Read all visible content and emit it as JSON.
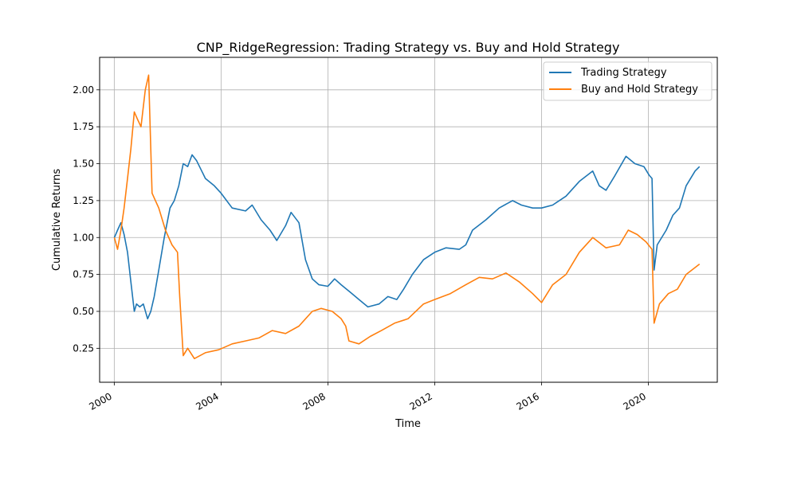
{
  "chart_data": {
    "type": "line",
    "title": "CNP_RidgeRegression: Trading Strategy vs. Buy and Hold Strategy",
    "xlabel": "Time",
    "ylabel": "Cumulative Returns",
    "xlim": [
      "1999-06-15",
      "2022-08-01"
    ],
    "ylim": [
      0.02,
      2.22
    ],
    "x_ticks": [
      {
        "date": "2000-01-01",
        "label": "2000"
      },
      {
        "date": "2004-01-01",
        "label": "2004"
      },
      {
        "date": "2008-01-01",
        "label": "2008"
      },
      {
        "date": "2012-01-01",
        "label": "2012"
      },
      {
        "date": "2016-01-01",
        "label": "2016"
      },
      {
        "date": "2020-01-01",
        "label": "2020"
      }
    ],
    "y_ticks": [
      {
        "value": 0.25,
        "label": "0.25"
      },
      {
        "value": 0.5,
        "label": "0.50"
      },
      {
        "value": 0.75,
        "label": "0.75"
      },
      {
        "value": 1.0,
        "label": "1.00"
      },
      {
        "value": 1.25,
        "label": "1.25"
      },
      {
        "value": 1.5,
        "label": "1.50"
      },
      {
        "value": 1.75,
        "label": "1.75"
      },
      {
        "value": 2.0,
        "label": "2.00"
      }
    ],
    "grid": true,
    "legend_position": "top-right",
    "series": [
      {
        "name": "Trading Strategy",
        "color": "#1f77b4",
        "points": [
          [
            "2000-01-03",
            1.0
          ],
          [
            "2000-02-15",
            1.05
          ],
          [
            "2000-04-01",
            1.1
          ],
          [
            "2000-05-15",
            1.02
          ],
          [
            "2000-07-01",
            0.9
          ],
          [
            "2000-08-15",
            0.7
          ],
          [
            "2000-10-01",
            0.5
          ],
          [
            "2000-11-01",
            0.55
          ],
          [
            "2000-12-15",
            0.53
          ],
          [
            "2001-02-01",
            0.55
          ],
          [
            "2001-04-01",
            0.45
          ],
          [
            "2001-05-15",
            0.5
          ],
          [
            "2001-07-01",
            0.6
          ],
          [
            "2001-09-01",
            0.78
          ],
          [
            "2001-11-15",
            1.0
          ],
          [
            "2002-02-01",
            1.2
          ],
          [
            "2002-04-01",
            1.25
          ],
          [
            "2002-06-01",
            1.35
          ],
          [
            "2002-08-01",
            1.5
          ],
          [
            "2002-10-01",
            1.48
          ],
          [
            "2002-12-01",
            1.56
          ],
          [
            "2003-02-01",
            1.52
          ],
          [
            "2003-06-01",
            1.4
          ],
          [
            "2003-10-01",
            1.35
          ],
          [
            "2004-01-01",
            1.3
          ],
          [
            "2004-06-01",
            1.2
          ],
          [
            "2004-12-01",
            1.18
          ],
          [
            "2005-03-01",
            1.22
          ],
          [
            "2005-07-01",
            1.12
          ],
          [
            "2005-11-01",
            1.05
          ],
          [
            "2006-02-01",
            0.98
          ],
          [
            "2006-06-01",
            1.08
          ],
          [
            "2006-08-15",
            1.17
          ],
          [
            "2006-12-01",
            1.1
          ],
          [
            "2007-03-01",
            0.85
          ],
          [
            "2007-06-01",
            0.72
          ],
          [
            "2007-09-01",
            0.68
          ],
          [
            "2008-01-01",
            0.67
          ],
          [
            "2008-04-01",
            0.72
          ],
          [
            "2008-07-01",
            0.68
          ],
          [
            "2008-11-01",
            0.63
          ],
          [
            "2009-03-01",
            0.58
          ],
          [
            "2009-07-01",
            0.53
          ],
          [
            "2009-12-01",
            0.55
          ],
          [
            "2010-04-01",
            0.6
          ],
          [
            "2010-08-01",
            0.58
          ],
          [
            "2010-11-01",
            0.65
          ],
          [
            "2011-03-01",
            0.75
          ],
          [
            "2011-08-01",
            0.85
          ],
          [
            "2012-01-01",
            0.9
          ],
          [
            "2012-06-01",
            0.93
          ],
          [
            "2012-12-01",
            0.92
          ],
          [
            "2013-03-01",
            0.95
          ],
          [
            "2013-06-01",
            1.05
          ],
          [
            "2013-12-01",
            1.12
          ],
          [
            "2014-06-01",
            1.2
          ],
          [
            "2014-12-01",
            1.25
          ],
          [
            "2015-04-01",
            1.22
          ],
          [
            "2015-09-01",
            1.2
          ],
          [
            "2016-01-01",
            1.2
          ],
          [
            "2016-06-01",
            1.22
          ],
          [
            "2016-12-01",
            1.28
          ],
          [
            "2017-06-01",
            1.38
          ],
          [
            "2017-12-01",
            1.45
          ],
          [
            "2018-03-01",
            1.35
          ],
          [
            "2018-06-01",
            1.32
          ],
          [
            "2018-10-01",
            1.42
          ],
          [
            "2019-03-01",
            1.55
          ],
          [
            "2019-07-01",
            1.5
          ],
          [
            "2019-11-01",
            1.48
          ],
          [
            "2020-01-15",
            1.42
          ],
          [
            "2020-02-20",
            1.4
          ],
          [
            "2020-03-20",
            0.78
          ],
          [
            "2020-05-01",
            0.95
          ],
          [
            "2020-09-01",
            1.05
          ],
          [
            "2020-12-01",
            1.15
          ],
          [
            "2021-03-01",
            1.2
          ],
          [
            "2021-06-01",
            1.35
          ],
          [
            "2021-10-01",
            1.45
          ],
          [
            "2021-12-01",
            1.48
          ]
        ]
      },
      {
        "name": "Buy and Hold Strategy",
        "color": "#ff7f0e",
        "points": [
          [
            "2000-01-03",
            1.0
          ],
          [
            "2000-02-15",
            0.92
          ],
          [
            "2000-04-01",
            1.05
          ],
          [
            "2000-05-15",
            1.2
          ],
          [
            "2000-07-01",
            1.4
          ],
          [
            "2000-08-15",
            1.6
          ],
          [
            "2000-10-01",
            1.85
          ],
          [
            "2000-11-15",
            1.8
          ],
          [
            "2001-01-01",
            1.75
          ],
          [
            "2001-03-01",
            2.0
          ],
          [
            "2001-04-15",
            2.1
          ],
          [
            "2001-06-01",
            1.3
          ],
          [
            "2001-09-01",
            1.2
          ],
          [
            "2001-12-01",
            1.05
          ],
          [
            "2002-03-01",
            0.95
          ],
          [
            "2002-05-15",
            0.9
          ],
          [
            "2002-06-15",
            0.6
          ],
          [
            "2002-08-01",
            0.2
          ],
          [
            "2002-10-01",
            0.25
          ],
          [
            "2003-01-01",
            0.18
          ],
          [
            "2003-06-01",
            0.22
          ],
          [
            "2003-12-01",
            0.24
          ],
          [
            "2004-06-01",
            0.28
          ],
          [
            "2004-12-01",
            0.3
          ],
          [
            "2005-06-01",
            0.32
          ],
          [
            "2005-12-01",
            0.37
          ],
          [
            "2006-06-01",
            0.35
          ],
          [
            "2006-12-01",
            0.4
          ],
          [
            "2007-06-01",
            0.5
          ],
          [
            "2007-10-01",
            0.52
          ],
          [
            "2008-03-01",
            0.5
          ],
          [
            "2008-07-01",
            0.45
          ],
          [
            "2008-09-01",
            0.4
          ],
          [
            "2008-10-15",
            0.3
          ],
          [
            "2009-03-01",
            0.28
          ],
          [
            "2009-08-01",
            0.33
          ],
          [
            "2010-01-01",
            0.37
          ],
          [
            "2010-07-01",
            0.42
          ],
          [
            "2011-01-01",
            0.45
          ],
          [
            "2011-08-01",
            0.55
          ],
          [
            "2012-01-01",
            0.58
          ],
          [
            "2012-08-01",
            0.62
          ],
          [
            "2013-03-01",
            0.68
          ],
          [
            "2013-09-01",
            0.73
          ],
          [
            "2014-03-01",
            0.72
          ],
          [
            "2014-09-01",
            0.76
          ],
          [
            "2015-03-01",
            0.7
          ],
          [
            "2015-09-01",
            0.62
          ],
          [
            "2016-01-01",
            0.56
          ],
          [
            "2016-06-01",
            0.68
          ],
          [
            "2016-12-01",
            0.75
          ],
          [
            "2017-06-01",
            0.9
          ],
          [
            "2017-12-01",
            1.0
          ],
          [
            "2018-06-01",
            0.93
          ],
          [
            "2018-12-01",
            0.95
          ],
          [
            "2019-04-01",
            1.05
          ],
          [
            "2019-08-01",
            1.02
          ],
          [
            "2019-12-01",
            0.97
          ],
          [
            "2020-02-20",
            0.92
          ],
          [
            "2020-03-20",
            0.42
          ],
          [
            "2020-06-01",
            0.55
          ],
          [
            "2020-10-01",
            0.62
          ],
          [
            "2021-02-01",
            0.65
          ],
          [
            "2021-06-01",
            0.75
          ],
          [
            "2021-12-01",
            0.82
          ]
        ]
      }
    ]
  }
}
